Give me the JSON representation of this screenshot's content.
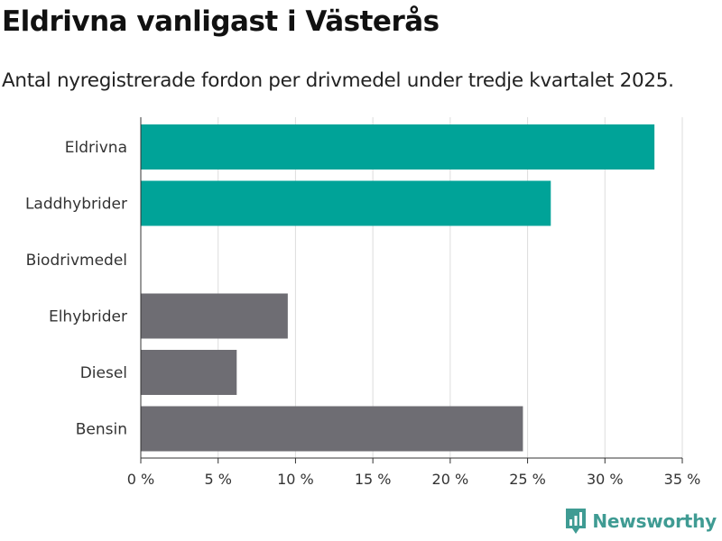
{
  "title": "Eldrivna vanligast i Västerås",
  "subtitle": "Antal nyregistrerade fordon per drivmedel under tredje kvartalet 2025.",
  "brand": {
    "name": "Newsworthy",
    "icon": "newsworthy-logo-icon",
    "color": "#3f9b93"
  },
  "colors": {
    "highlight": "#00a398",
    "neutral": "#6e6d73",
    "grid": "#dddddd",
    "axis": "#333333"
  },
  "chart_data": {
    "type": "bar",
    "orientation": "horizontal",
    "categories": [
      "Eldrivna",
      "Laddhybrider",
      "Biodrivmedel",
      "Elhybrider",
      "Diesel",
      "Bensin"
    ],
    "values": [
      33.2,
      26.5,
      0,
      9.5,
      6.2,
      24.7
    ],
    "bar_colors": [
      "#00a398",
      "#00a398",
      "#6e6d73",
      "#6e6d73",
      "#6e6d73",
      "#6e6d73"
    ],
    "xlim": [
      0,
      35
    ],
    "xticks": [
      0,
      5,
      10,
      15,
      20,
      25,
      30,
      35
    ],
    "xtick_labels": [
      "0 %",
      "5 %",
      "10 %",
      "15 %",
      "20 %",
      "25 %",
      "30 %",
      "35 %"
    ],
    "xlabel": "",
    "ylabel": "",
    "grid": "vertical",
    "legend": "none"
  }
}
